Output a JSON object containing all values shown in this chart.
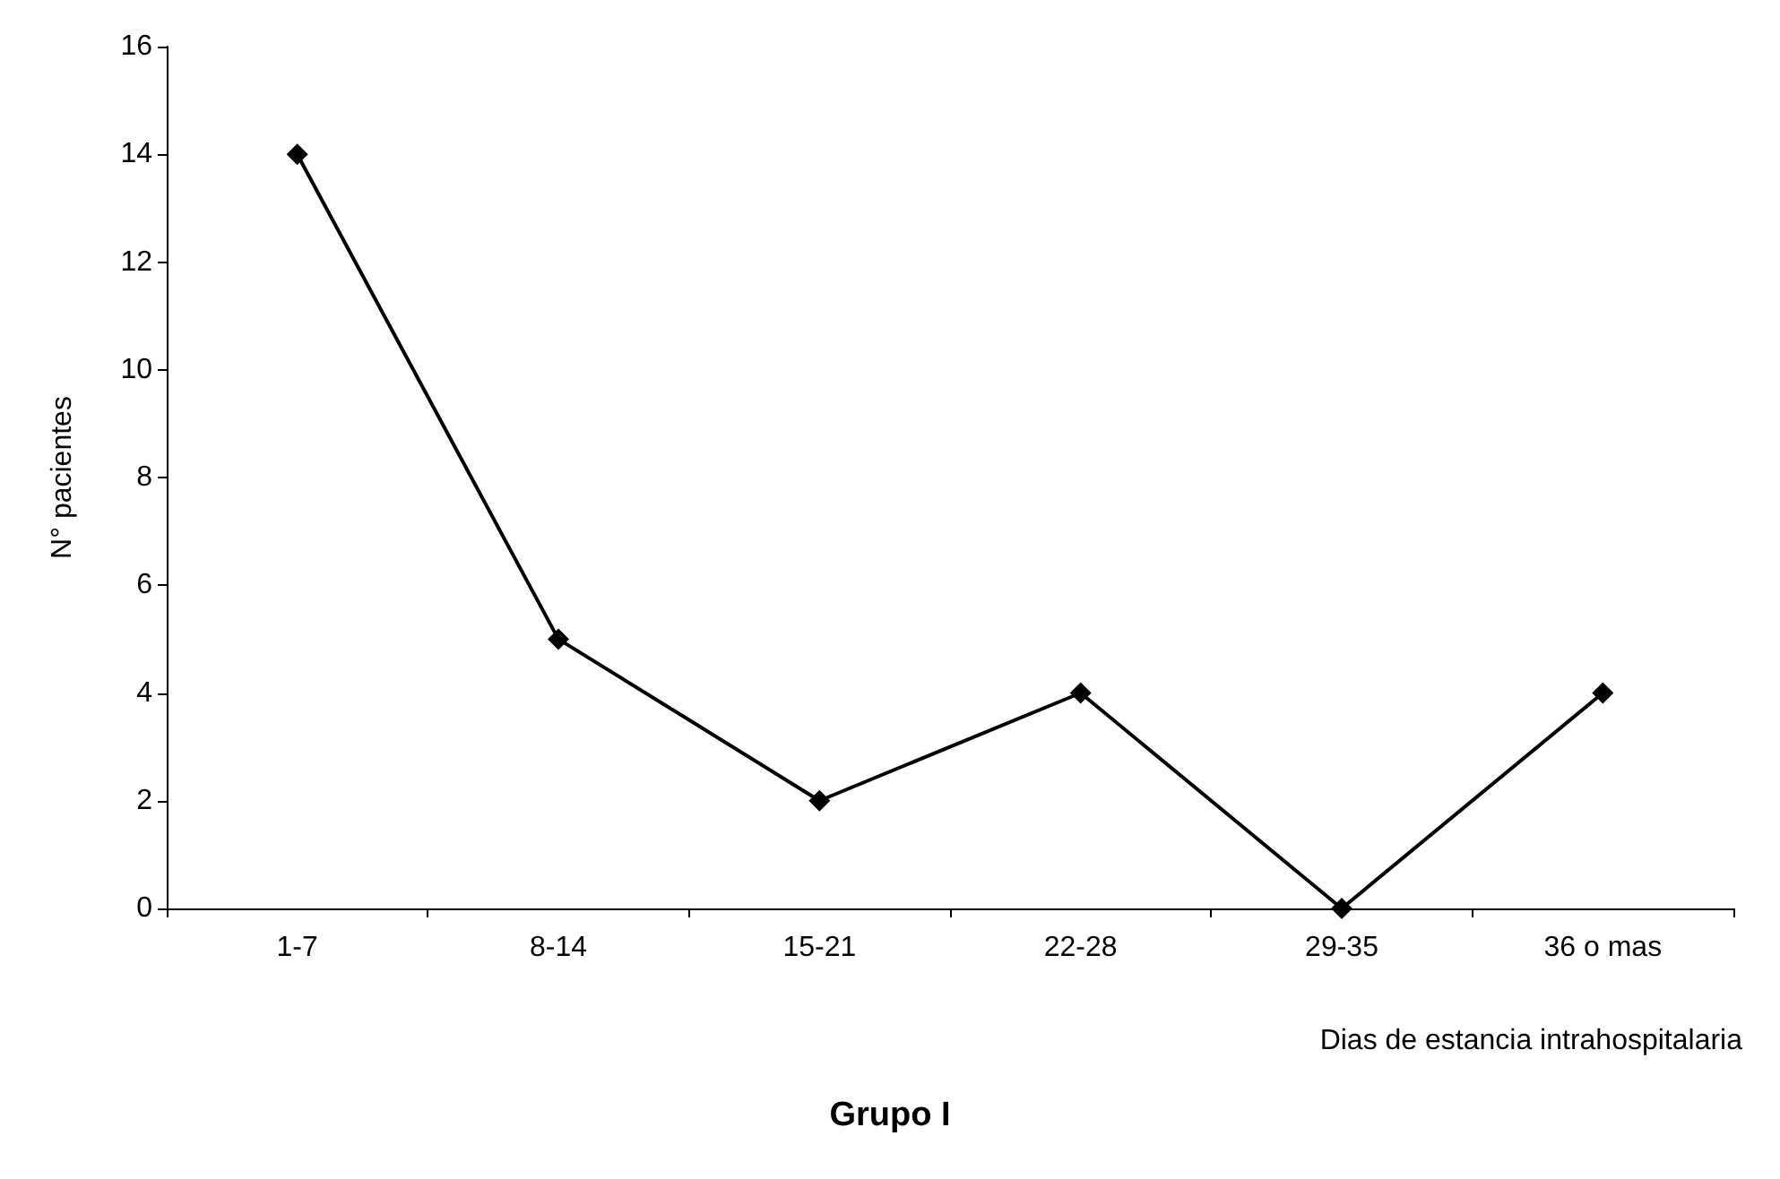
{
  "chart_data": {
    "type": "line",
    "title": "Grupo I",
    "xlabel": "Dias de estancia intrahospitalaria",
    "ylabel": "N° pacientes",
    "categories": [
      "1-7",
      "8-14",
      "15-21",
      "22-28",
      "29-35",
      "36 o mas"
    ],
    "series": [
      {
        "color": "#000000",
        "values": [
          14,
          5,
          2,
          4,
          0,
          4
        ]
      }
    ],
    "ylim": [
      0,
      16
    ],
    "yticks": [
      0,
      2,
      4,
      6,
      8,
      10,
      12,
      14,
      16
    ],
    "grid": false,
    "marker": "diamond",
    "line_style": "solid"
  }
}
